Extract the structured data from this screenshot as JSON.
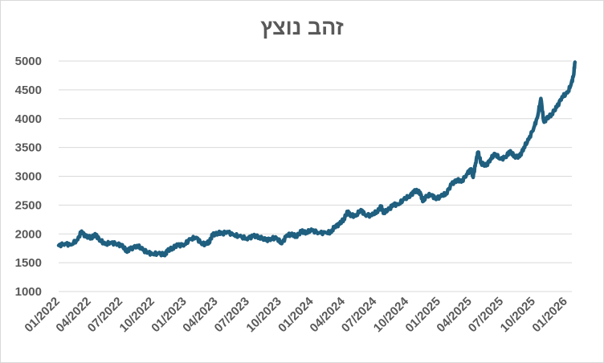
{
  "chart_data": {
    "type": "line",
    "title": "זהב נוצץ",
    "xlabel": "",
    "ylabel": "",
    "ylim": [
      1000,
      5000
    ],
    "yticks": [
      1000,
      1500,
      2000,
      2500,
      3000,
      3500,
      4000,
      4500,
      5000
    ],
    "xticks": [
      "01/2022",
      "04/2022",
      "07/2022",
      "10/2022",
      "01/2023",
      "04/2023",
      "07/2023",
      "10/2023",
      "01/2024",
      "04/2024",
      "07/2024",
      "10/2024",
      "01/2025",
      "04/2025",
      "07/2025",
      "10/2025",
      "01/2026"
    ],
    "grid": true,
    "legend": "none",
    "series": [
      {
        "color": "#1f5f7f",
        "points": [
          [
            "2022-01-01",
            1800
          ],
          [
            "2022-01-20",
            1830
          ],
          [
            "2022-02-05",
            1810
          ],
          [
            "2022-02-25",
            1900
          ],
          [
            "2022-03-08",
            2050
          ],
          [
            "2022-03-20",
            1950
          ],
          [
            "2022-04-05",
            1940
          ],
          [
            "2022-04-18",
            1980
          ],
          [
            "2022-05-01",
            1890
          ],
          [
            "2022-05-15",
            1820
          ],
          [
            "2022-06-01",
            1850
          ],
          [
            "2022-06-15",
            1830
          ],
          [
            "2022-07-01",
            1800
          ],
          [
            "2022-07-15",
            1710
          ],
          [
            "2022-07-25",
            1730
          ],
          [
            "2022-08-15",
            1800
          ],
          [
            "2022-09-01",
            1720
          ],
          [
            "2022-09-15",
            1680
          ],
          [
            "2022-09-28",
            1650
          ],
          [
            "2022-10-15",
            1660
          ],
          [
            "2022-11-01",
            1640
          ],
          [
            "2022-11-10",
            1700
          ],
          [
            "2022-11-25",
            1760
          ],
          [
            "2022-12-10",
            1800
          ],
          [
            "2022-12-30",
            1820
          ],
          [
            "2023-01-15",
            1910
          ],
          [
            "2023-02-01",
            1940
          ],
          [
            "2023-02-15",
            1840
          ],
          [
            "2023-03-01",
            1820
          ],
          [
            "2023-03-10",
            1860
          ],
          [
            "2023-03-20",
            1980
          ],
          [
            "2023-04-05",
            2020
          ],
          [
            "2023-04-15",
            2000
          ],
          [
            "2023-05-01",
            2040
          ],
          [
            "2023-05-20",
            1980
          ],
          [
            "2023-06-05",
            1960
          ],
          [
            "2023-06-25",
            1920
          ],
          [
            "2023-07-15",
            1960
          ],
          [
            "2023-08-01",
            1950
          ],
          [
            "2023-08-20",
            1890
          ],
          [
            "2023-09-05",
            1920
          ],
          [
            "2023-09-20",
            1930
          ],
          [
            "2023-10-05",
            1830
          ],
          [
            "2023-10-20",
            1980
          ],
          [
            "2023-11-01",
            1990
          ],
          [
            "2023-11-15",
            1960
          ],
          [
            "2023-12-01",
            2040
          ],
          [
            "2023-12-15",
            2030
          ],
          [
            "2024-01-01",
            2060
          ],
          [
            "2024-01-20",
            2020
          ],
          [
            "2024-02-10",
            2020
          ],
          [
            "2024-02-25",
            2030
          ],
          [
            "2024-03-05",
            2130
          ],
          [
            "2024-03-20",
            2170
          ],
          [
            "2024-04-01",
            2260
          ],
          [
            "2024-04-12",
            2380
          ],
          [
            "2024-04-22",
            2320
          ],
          [
            "2024-05-05",
            2310
          ],
          [
            "2024-05-20",
            2420
          ],
          [
            "2024-06-01",
            2330
          ],
          [
            "2024-06-20",
            2320
          ],
          [
            "2024-07-05",
            2390
          ],
          [
            "2024-07-17",
            2470
          ],
          [
            "2024-07-25",
            2370
          ],
          [
            "2024-08-10",
            2430
          ],
          [
            "2024-08-20",
            2510
          ],
          [
            "2024-09-05",
            2510
          ],
          [
            "2024-09-20",
            2600
          ],
          [
            "2024-10-05",
            2650
          ],
          [
            "2024-10-20",
            2730
          ],
          [
            "2024-10-31",
            2750
          ],
          [
            "2024-11-08",
            2680
          ],
          [
            "2024-11-15",
            2570
          ],
          [
            "2024-11-25",
            2660
          ],
          [
            "2024-12-10",
            2680
          ],
          [
            "2024-12-20",
            2610
          ],
          [
            "2025-01-05",
            2650
          ],
          [
            "2025-01-20",
            2700
          ],
          [
            "2025-02-05",
            2860
          ],
          [
            "2025-02-20",
            2940
          ],
          [
            "2025-03-05",
            2900
          ],
          [
            "2025-03-20",
            3030
          ],
          [
            "2025-04-02",
            3130
          ],
          [
            "2025-04-08",
            2980
          ],
          [
            "2025-04-15",
            3230
          ],
          [
            "2025-04-22",
            3420
          ],
          [
            "2025-05-01",
            3230
          ],
          [
            "2025-05-15",
            3180
          ],
          [
            "2025-05-28",
            3300
          ],
          [
            "2025-06-10",
            3390
          ],
          [
            "2025-06-25",
            3300
          ],
          [
            "2025-07-10",
            3330
          ],
          [
            "2025-07-22",
            3430
          ],
          [
            "2025-08-05",
            3350
          ],
          [
            "2025-08-20",
            3340
          ],
          [
            "2025-09-01",
            3500
          ],
          [
            "2025-09-15",
            3640
          ],
          [
            "2025-09-30",
            3850
          ],
          [
            "2025-10-10",
            4020
          ],
          [
            "2025-10-20",
            4350
          ],
          [
            "2025-10-28",
            3960
          ],
          [
            "2025-11-05",
            3990
          ],
          [
            "2025-11-20",
            4080
          ],
          [
            "2025-12-05",
            4200
          ],
          [
            "2025-12-20",
            4380
          ],
          [
            "2026-01-05",
            4450
          ],
          [
            "2026-01-15",
            4600
          ],
          [
            "2026-01-22",
            4750
          ],
          [
            "2026-01-26",
            4980
          ]
        ]
      }
    ]
  }
}
